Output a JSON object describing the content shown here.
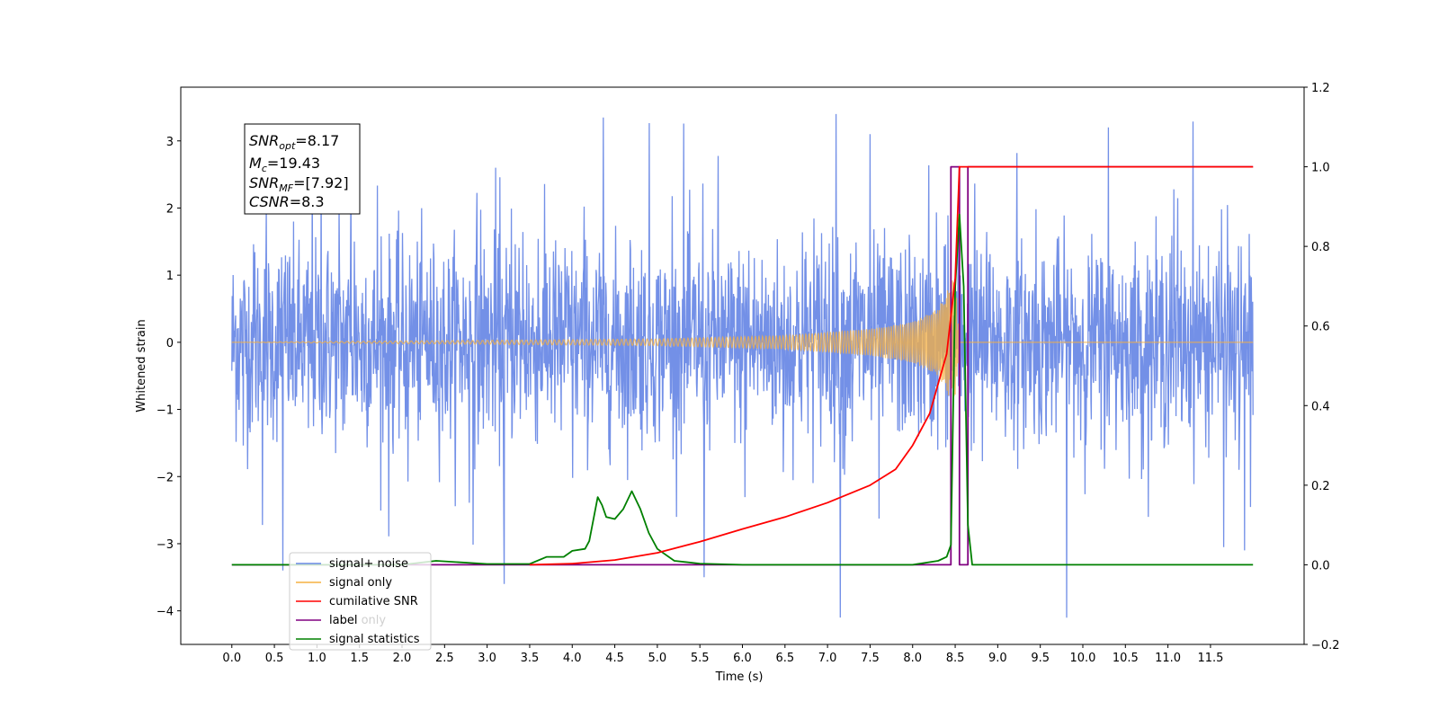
{
  "chart_data": {
    "type": "line",
    "xlabel": "Time (s)",
    "ylabel_left": "Whitened strain",
    "x_range": [
      -0.6,
      12.6
    ],
    "ylim_left": [
      -4.5,
      3.8
    ],
    "ylim_right": [
      -0.2,
      1.2
    ],
    "x_ticks": [
      "0.0",
      "0.5",
      "1.0",
      "1.5",
      "2.0",
      "2.5",
      "3.0",
      "3.5",
      "4.0",
      "4.5",
      "5.0",
      "5.5",
      "6.0",
      "6.5",
      "7.0",
      "7.5",
      "8.0",
      "8.5",
      "9.0",
      "9.5",
      "10.0",
      "10.5",
      "11.0",
      "11.5"
    ],
    "y_ticks_left": [
      "−4",
      "−3",
      "−2",
      "−1",
      "0",
      "1",
      "2",
      "3"
    ],
    "y_ticks_right": [
      "−0.2",
      "0.0",
      "0.2",
      "0.4",
      "0.6",
      "0.8",
      "1.0",
      "1.2"
    ],
    "annotation": {
      "snr_opt": "=8.17",
      "mc": "=19.43",
      "snr_mf": "=[7.92]",
      "csnr": "=8.3"
    },
    "legend": {
      "placement": "lower-left",
      "entries": [
        "signal+ noise",
        "signal only",
        "cumilative SNR",
        "label",
        "signal statistics"
      ],
      "hidden_entry": "label only"
    },
    "colors": {
      "noise": "#6b8ae6",
      "signal": "#f5b041",
      "cumsnr": "#ff0000",
      "label": "#800080",
      "stats": "#008000"
    },
    "series": [
      {
        "name": "signal+ noise",
        "axis": "left",
        "x_range": [
          0.0,
          12.0
        ],
        "envelope_typical": [
          -1.8,
          1.9
        ],
        "peaks_high": [
          [
            1.05,
            2.6
          ],
          [
            1.4,
            2.4
          ],
          [
            3.1,
            2.6
          ],
          [
            7.1,
            3.4
          ],
          [
            7.5,
            3.1
          ],
          [
            10.3,
            3.2
          ],
          [
            11.9,
            3.0
          ]
        ],
        "peaks_low": [
          [
            0.6,
            -3.4
          ],
          [
            3.2,
            -3.6
          ],
          [
            5.55,
            -3.5
          ],
          [
            7.15,
            -4.1
          ],
          [
            11.9,
            -3.1
          ]
        ]
      },
      {
        "name": "signal only",
        "axis": "left",
        "x_range": [
          0.0,
          12.0
        ],
        "amplitude_points": [
          [
            0.0,
            0.0
          ],
          [
            5.0,
            0.05
          ],
          [
            6.5,
            0.1
          ],
          [
            7.5,
            0.2
          ],
          [
            8.0,
            0.3
          ],
          [
            8.3,
            0.5
          ],
          [
            8.5,
            1.0
          ],
          [
            8.55,
            0.0
          ],
          [
            12.0,
            0.0
          ]
        ]
      },
      {
        "name": "cumilative SNR",
        "axis": "right",
        "points": [
          [
            3.5,
            0.0
          ],
          [
            4.0,
            0.003
          ],
          [
            4.5,
            0.012
          ],
          [
            5.0,
            0.03
          ],
          [
            5.5,
            0.058
          ],
          [
            6.0,
            0.09
          ],
          [
            6.5,
            0.12
          ],
          [
            7.0,
            0.156
          ],
          [
            7.5,
            0.2
          ],
          [
            7.8,
            0.24
          ],
          [
            8.0,
            0.3
          ],
          [
            8.2,
            0.38
          ],
          [
            8.4,
            0.53
          ],
          [
            8.5,
            0.72
          ],
          [
            8.55,
            1.0
          ],
          [
            12.0,
            1.0
          ]
        ]
      },
      {
        "name": "label",
        "axis": "right",
        "points": [
          [
            0.0,
            0.0
          ],
          [
            8.45,
            0.0
          ],
          [
            8.45,
            1.0
          ],
          [
            8.55,
            1.0
          ],
          [
            8.55,
            0.0
          ],
          [
            8.65,
            0.0
          ],
          [
            8.65,
            1.0
          ],
          [
            12.0,
            1.0
          ]
        ]
      },
      {
        "name": "signal statistics",
        "axis": "right",
        "points": [
          [
            0.0,
            0.0
          ],
          [
            2.0,
            0.0
          ],
          [
            2.4,
            0.01
          ],
          [
            3.0,
            0.002
          ],
          [
            3.5,
            0.002
          ],
          [
            3.7,
            0.02
          ],
          [
            3.9,
            0.02
          ],
          [
            4.0,
            0.035
          ],
          [
            4.15,
            0.04
          ],
          [
            4.2,
            0.06
          ],
          [
            4.3,
            0.17
          ],
          [
            4.35,
            0.15
          ],
          [
            4.4,
            0.12
          ],
          [
            4.5,
            0.115
          ],
          [
            4.6,
            0.14
          ],
          [
            4.7,
            0.185
          ],
          [
            4.8,
            0.14
          ],
          [
            4.9,
            0.08
          ],
          [
            5.0,
            0.04
          ],
          [
            5.2,
            0.01
          ],
          [
            5.5,
            0.003
          ],
          [
            6.0,
            0.0
          ],
          [
            8.0,
            0.0
          ],
          [
            8.3,
            0.01
          ],
          [
            8.4,
            0.02
          ],
          [
            8.45,
            0.05
          ],
          [
            8.5,
            0.7
          ],
          [
            8.55,
            0.88
          ],
          [
            8.6,
            0.7
          ],
          [
            8.65,
            0.1
          ],
          [
            8.7,
            0.0
          ],
          [
            12.0,
            0.0
          ]
        ]
      }
    ]
  }
}
